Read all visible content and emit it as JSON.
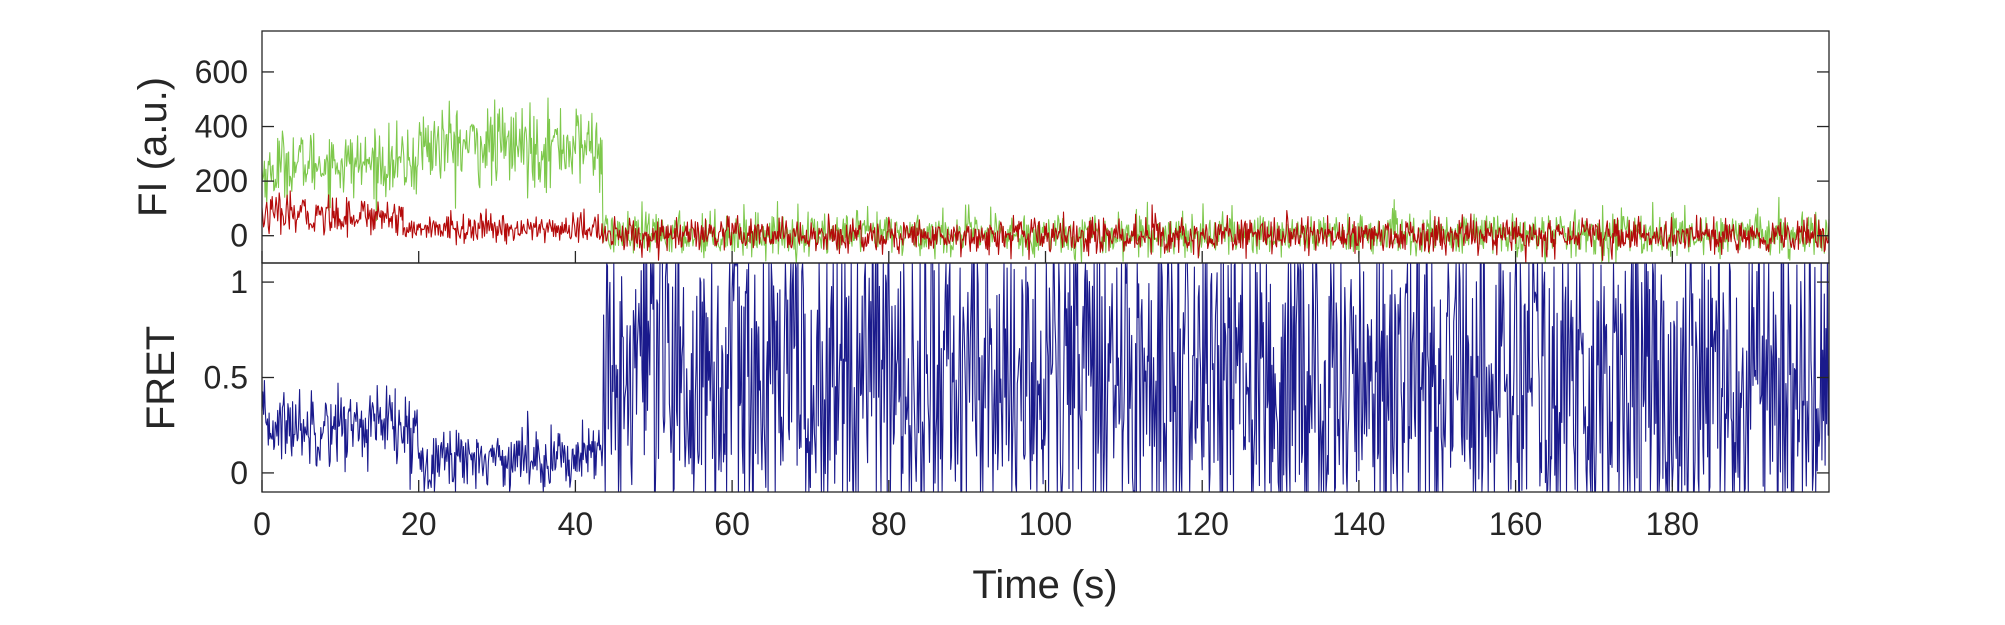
{
  "chart_data": [
    {
      "panel": "top",
      "type": "line",
      "ylabel": "FI (a.u.)",
      "xlim": [
        0,
        200
      ],
      "ylim": [
        -100,
        750
      ],
      "yticks": [
        0,
        200,
        400,
        600
      ],
      "ytick_labels": [
        "0",
        "200",
        "400",
        "600"
      ],
      "colors": [
        "#7ec84c",
        "#b40a0a"
      ],
      "series": [
        {
          "key": "donor",
          "segments": [
            {
              "x_start": 0,
              "x_end": 2,
              "mean": 230,
              "sd": 55
            },
            {
              "x_start": 2,
              "x_end": 20,
              "mean": 265,
              "sd": 60
            },
            {
              "x_start": 20,
              "x_end": 43.5,
              "mean": 330,
              "sd": 75
            },
            {
              "x_start": 43.5,
              "x_end": 200,
              "mean": 5,
              "sd": 40
            }
          ]
        },
        {
          "key": "acceptor",
          "segments": [
            {
              "x_start": 0,
              "x_end": 18,
              "mean": 75,
              "sd": 35
            },
            {
              "x_start": 18,
              "x_end": 43.5,
              "mean": 25,
              "sd": 25
            },
            {
              "x_start": 43.5,
              "x_end": 200,
              "mean": 0,
              "sd": 32
            }
          ]
        }
      ]
    },
    {
      "panel": "bottom",
      "type": "line",
      "xlabel": "Time (s)",
      "ylabel": "FRET",
      "xlim": [
        0,
        200
      ],
      "ylim": [
        -0.1,
        1.1
      ],
      "yticks": [
        0,
        0.5,
        1
      ],
      "ytick_labels": [
        "0",
        "0.5",
        "1"
      ],
      "xticks": [
        0,
        20,
        40,
        60,
        80,
        100,
        120,
        140,
        160,
        180
      ],
      "xtick_labels": [
        "0",
        "20",
        "40",
        "60",
        "80",
        "100",
        "120",
        "140",
        "160",
        "180"
      ],
      "colors": [
        "#1a1a8c"
      ],
      "series": [
        {
          "key": "fret",
          "segments": [
            {
              "x_start": 0,
              "x_end": 17,
              "mean": 0.25,
              "sd": 0.1
            },
            {
              "x_start": 17,
              "x_end": 20,
              "mean": 0.2,
              "sd": 0.12
            },
            {
              "x_start": 20,
              "x_end": 43.5,
              "mean": 0.08,
              "sd": 0.08
            },
            {
              "x_start": 43.5,
              "x_end": 200,
              "mean": 0.5,
              "sd": 0.5
            }
          ]
        }
      ]
    }
  ]
}
